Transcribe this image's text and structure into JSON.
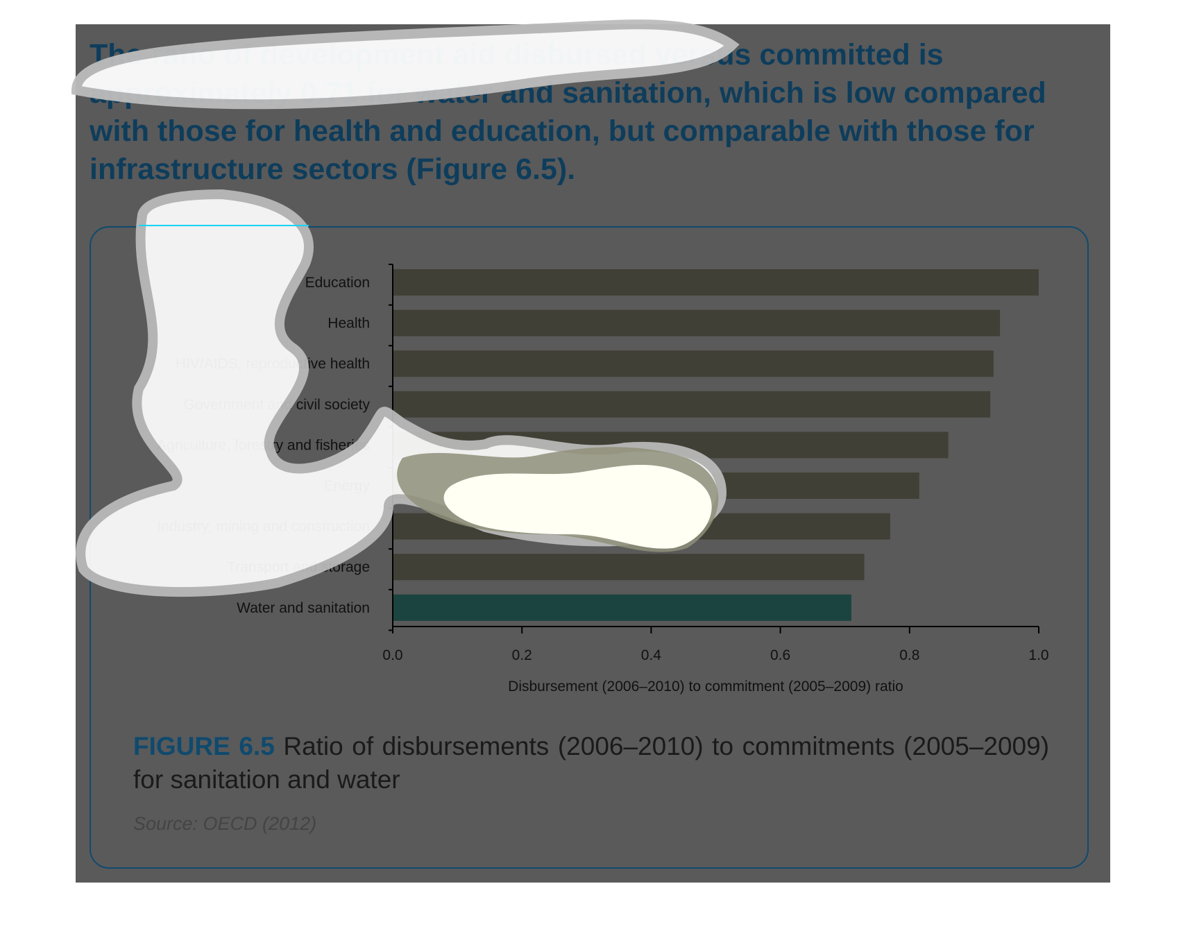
{
  "headline": "The ratio of development aid disbursed versus committed is approximately 0.71 for water and sanitation, which is low compared with those for health and education, but comparable with those for infrastructure sectors (Figure 6.5).",
  "colors": {
    "panel_bg": "#5a5a5a",
    "headline_text": "#0e3d5c",
    "headline_highlight": "#17d5f2",
    "bar_default": "#414036",
    "bar_highlight": "#1b4440",
    "frame_border": "#0f4a6e"
  },
  "chart_data": {
    "type": "bar",
    "orientation": "horizontal",
    "categories": [
      "Education",
      "Health",
      "HIV/AIDS, reproductive health",
      "Government and civil society",
      "Agriculture, forestry and fisheries",
      "Energy",
      "Industry, mining and construction",
      "Transport and storage",
      "Water and sanitation"
    ],
    "values": [
      1.0,
      0.94,
      0.93,
      0.925,
      0.86,
      0.815,
      0.77,
      0.73,
      0.71
    ],
    "highlight_category": "Water and sanitation",
    "xlabel": "Disbursement (2006–2010) to commitment (2005–2009) ratio",
    "xlim": [
      0.0,
      1.0
    ],
    "xticks": [
      "0.0",
      "0.2",
      "0.4",
      "0.6",
      "0.8",
      "1.0"
    ],
    "grid": false,
    "legend": "none"
  },
  "caption": {
    "figure_number": "FIGURE 6.5",
    "text": "Ratio of disbursements (2006–2010) to commitments (2005–2009) for sanitation and water"
  },
  "source": "Source: OECD (2012)"
}
